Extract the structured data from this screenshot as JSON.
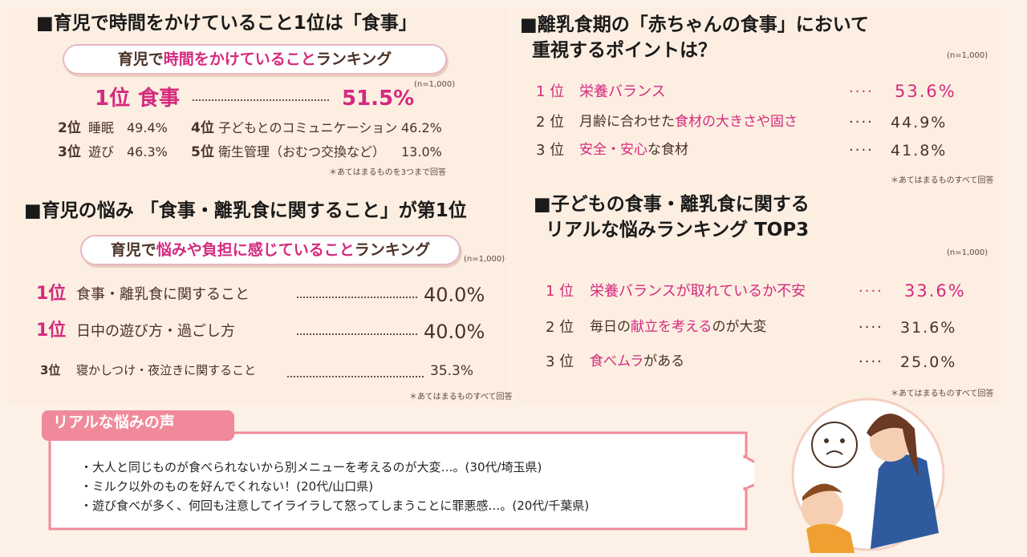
{
  "section1": {
    "heading": "■育児で時間をかけていること1位は「食事」",
    "banner": [
      {
        "text": "育児で",
        "highlight": false
      },
      {
        "text": "時間をかけていること",
        "highlight": true
      },
      {
        "text": "ランキング",
        "highlight": false
      }
    ],
    "n": "(n=1,000)",
    "top": {
      "rank": "1位",
      "item": "食事",
      "value": "51.5%"
    },
    "others": [
      {
        "rank": "2位",
        "item": "睡眠",
        "value": "49.4%"
      },
      {
        "rank": "4位",
        "item": "子どもとのコミュニケーション",
        "value": "46.2%"
      },
      {
        "rank": "3位",
        "item": "遊び",
        "value": "46.3%"
      },
      {
        "rank": "5位",
        "item": "衛生管理（おむつ交換など）",
        "value": "13.0%"
      }
    ],
    "note": "＊あてはまるものを3つまで回答"
  },
  "section2": {
    "heading": "■育児の悩み 「食事・離乳食に関すること」が第1位",
    "banner": [
      {
        "text": "育児で",
        "highlight": false
      },
      {
        "text": "悩みや負担に感じていること",
        "highlight": true
      },
      {
        "text": "ランキング",
        "highlight": false
      }
    ],
    "n": "(n=1,000)",
    "items": [
      {
        "rank": "1位",
        "item": "食事・離乳食に関すること",
        "value": "40.0%"
      },
      {
        "rank": "1位",
        "item": "日中の遊び方・過ごし方",
        "value": "40.0%"
      },
      {
        "rank": "3位",
        "item": "寝かしつけ・夜泣きに関すること",
        "value": "35.3%"
      }
    ],
    "note": "＊あてはまるものすべて回答"
  },
  "section3": {
    "heading": [
      "■離乳食期の「赤ちゃんの食事」において",
      "重視するポイントは？"
    ],
    "n": "(n=1,000)",
    "items": [
      {
        "rank": "1 位",
        "item": [
          {
            "text": "栄養バランス",
            "highlight": true
          }
        ],
        "value": "53.6%"
      },
      {
        "rank": "2 位",
        "item": [
          {
            "text": "月齢に合わせた",
            "highlight": false
          },
          {
            "text": "食材の大きさや固さ",
            "highlight": true
          }
        ],
        "value": "44.9%"
      },
      {
        "rank": "3 位",
        "item": [
          {
            "text": "安全・安心",
            "highlight": true
          },
          {
            "text": "な食材",
            "highlight": false
          }
        ],
        "value": "41.8%"
      }
    ],
    "note": "＊あてはまるものすべて回答"
  },
  "section4": {
    "heading": [
      "■子どもの食事・離乳食に関する",
      "リアルな悩みランキング TOP3"
    ],
    "n": "(n=1,000)",
    "items": [
      {
        "rank": "1 位",
        "item": [
          {
            "text": "栄養バランスが取れているか不安",
            "highlight": true
          }
        ],
        "value": "33.6%"
      },
      {
        "rank": "2 位",
        "item": [
          {
            "text": "毎日の",
            "highlight": false
          },
          {
            "text": "献立を考える",
            "highlight": true
          },
          {
            "text": "のが大変",
            "highlight": false
          }
        ],
        "value": "31.6%"
      },
      {
        "rank": "3 位",
        "item": [
          {
            "text": "食べムラ",
            "highlight": true
          },
          {
            "text": "がある",
            "highlight": false
          }
        ],
        "value": "25.0%"
      }
    ],
    "note": "＊あてはまるものすべて回答"
  },
  "voices": {
    "title": "リアルな悩みの声",
    "lines": [
      "・大人と同じものが食べられないから別メニューを考えるのが大変…。(30代/埼玉県)",
      "・ミルク以外のものを好んでくれない！(20代/山口県)",
      "・遊び食べが多く、何回も注意してイライラして怒ってしまうことに罪悪感…。(20代/千葉県)"
    ]
  }
}
